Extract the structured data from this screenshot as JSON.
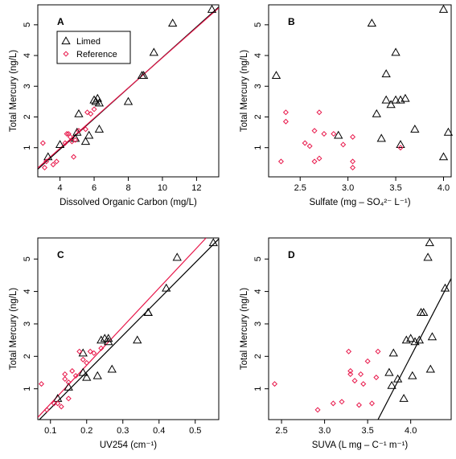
{
  "colors": {
    "limed": "#000000",
    "reference": "#e8174a",
    "frame": "#000000"
  },
  "chart_data": [
    {
      "type": "scatter",
      "panel": "A",
      "xlabel": "Dissolved Organic Carbon (mg/L)",
      "ylabel": "Total Mercury (ng/L)",
      "xlim": [
        2.7,
        13.3
      ],
      "ylim": [
        0.05,
        5.65
      ],
      "xticks": [
        4,
        6,
        8,
        10,
        12
      ],
      "yticks": [
        1,
        2,
        3,
        4,
        5
      ],
      "legend": {
        "position": "top-left",
        "entries": [
          "Limed",
          "Reference"
        ]
      },
      "series": [
        {
          "name": "Limed",
          "marker": "triangle",
          "color": "limed",
          "points": [
            [
              3.3,
              0.7
            ],
            [
              4.0,
              1.1
            ],
            [
              4.9,
              1.3
            ],
            [
              5.0,
              1.5
            ],
            [
              5.1,
              2.1
            ],
            [
              5.5,
              1.2
            ],
            [
              5.7,
              1.4
            ],
            [
              6.0,
              2.55
            ],
            [
              6.1,
              2.5
            ],
            [
              6.2,
              2.6
            ],
            [
              6.3,
              2.45
            ],
            [
              6.3,
              1.6
            ],
            [
              8.0,
              2.5
            ],
            [
              8.8,
              3.35
            ],
            [
              8.9,
              3.35
            ],
            [
              9.5,
              4.1
            ],
            [
              10.6,
              5.05
            ],
            [
              12.9,
              5.5
            ]
          ]
        },
        {
          "name": "Reference",
          "marker": "diamond",
          "color": "reference",
          "points": [
            [
              3.0,
              1.15
            ],
            [
              3.2,
              0.55
            ],
            [
              3.1,
              0.35
            ],
            [
              3.6,
              0.45
            ],
            [
              3.8,
              0.55
            ],
            [
              4.3,
              1.15
            ],
            [
              4.4,
              1.45
            ],
            [
              4.5,
              1.45
            ],
            [
              4.6,
              1.35
            ],
            [
              4.7,
              1.2
            ],
            [
              4.8,
              0.7
            ],
            [
              4.9,
              1.25
            ],
            [
              5.1,
              1.55
            ],
            [
              5.5,
              1.6
            ],
            [
              5.6,
              2.15
            ],
            [
              5.8,
              2.1
            ],
            [
              6.0,
              2.25
            ]
          ]
        }
      ],
      "fit_lines": [
        {
          "series": "Limed",
          "color": "limed",
          "p1": [
            2.7,
            0.3
          ],
          "p2": [
            13.3,
            5.58
          ]
        },
        {
          "series": "Reference",
          "color": "reference",
          "p1": [
            2.7,
            0.34
          ],
          "p2": [
            13.3,
            5.55
          ]
        }
      ]
    },
    {
      "type": "scatter",
      "panel": "B",
      "xlabel": "Sulfate (mg – SO₄²⁻ L⁻¹)",
      "ylabel": "Total Mercury (ng/L)",
      "xlim": [
        2.17,
        4.08
      ],
      "ylim": [
        0.05,
        5.65
      ],
      "xticks": [
        2.5,
        3.0,
        3.5,
        4.0
      ],
      "yticks": [
        1,
        2,
        3,
        4,
        5
      ],
      "series": [
        {
          "name": "Limed",
          "marker": "triangle",
          "color": "limed",
          "points": [
            [
              2.25,
              3.35
            ],
            [
              2.9,
              1.4
            ],
            [
              3.25,
              5.05
            ],
            [
              3.3,
              2.1
            ],
            [
              3.35,
              1.3
            ],
            [
              3.4,
              3.4
            ],
            [
              3.4,
              2.55
            ],
            [
              3.45,
              2.4
            ],
            [
              3.5,
              2.55
            ],
            [
              3.5,
              4.1
            ],
            [
              3.55,
              2.55
            ],
            [
              3.55,
              1.1
            ],
            [
              3.6,
              2.6
            ],
            [
              3.7,
              1.6
            ],
            [
              4.0,
              5.5
            ],
            [
              4.0,
              0.7
            ],
            [
              4.05,
              1.5
            ]
          ]
        },
        {
          "name": "Reference",
          "marker": "diamond",
          "color": "reference",
          "points": [
            [
              2.3,
              0.55
            ],
            [
              2.35,
              2.15
            ],
            [
              2.35,
              1.85
            ],
            [
              2.55,
              1.15
            ],
            [
              2.6,
              1.05
            ],
            [
              2.65,
              0.55
            ],
            [
              2.65,
              1.55
            ],
            [
              2.7,
              2.15
            ],
            [
              2.7,
              0.65
            ],
            [
              2.75,
              1.45
            ],
            [
              2.85,
              1.45
            ],
            [
              2.95,
              1.1
            ],
            [
              3.05,
              1.35
            ],
            [
              3.05,
              0.55
            ],
            [
              3.05,
              0.35
            ],
            [
              3.55,
              1.0
            ]
          ]
        }
      ]
    },
    {
      "type": "scatter",
      "panel": "C",
      "xlabel": "UV254 (cm⁻¹)",
      "ylabel": "Total Mercury (ng/L)",
      "xlim": [
        0.065,
        0.565
      ],
      "ylim": [
        0.05,
        5.65
      ],
      "xticks": [
        0.1,
        0.2,
        0.3,
        0.4,
        0.5
      ],
      "yticks": [
        1,
        2,
        3,
        4,
        5
      ],
      "series": [
        {
          "name": "Limed",
          "marker": "triangle",
          "color": "limed",
          "points": [
            [
              0.12,
              0.7
            ],
            [
              0.15,
              1.05
            ],
            [
              0.19,
              1.5
            ],
            [
              0.19,
              2.1
            ],
            [
              0.2,
              1.35
            ],
            [
              0.23,
              1.4
            ],
            [
              0.24,
              2.5
            ],
            [
              0.25,
              2.55
            ],
            [
              0.26,
              2.55
            ],
            [
              0.26,
              2.45
            ],
            [
              0.27,
              1.6
            ],
            [
              0.34,
              2.5
            ],
            [
              0.37,
              3.35
            ],
            [
              0.37,
              3.35
            ],
            [
              0.42,
              4.1
            ],
            [
              0.45,
              5.05
            ],
            [
              0.55,
              5.5
            ]
          ]
        },
        {
          "name": "Reference",
          "marker": "diamond",
          "color": "reference",
          "points": [
            [
              0.075,
              1.15
            ],
            [
              0.09,
              0.35
            ],
            [
              0.11,
              0.55
            ],
            [
              0.12,
              0.55
            ],
            [
              0.13,
              0.45
            ],
            [
              0.14,
              1.45
            ],
            [
              0.14,
              1.3
            ],
            [
              0.15,
              1.2
            ],
            [
              0.15,
              0.7
            ],
            [
              0.16,
              1.55
            ],
            [
              0.17,
              1.4
            ],
            [
              0.18,
              2.15
            ],
            [
              0.19,
              1.9
            ],
            [
              0.2,
              1.8
            ],
            [
              0.21,
              2.15
            ],
            [
              0.22,
              2.1
            ],
            [
              0.24,
              2.25
            ]
          ]
        }
      ],
      "fit_lines": [
        {
          "series": "Limed",
          "color": "limed",
          "p1": [
            0.065,
            0.0
          ],
          "p2": [
            0.565,
            5.62
          ]
        },
        {
          "series": "Reference",
          "color": "reference",
          "p1": [
            0.065,
            0.12
          ],
          "p2": [
            0.53,
            5.65
          ]
        }
      ]
    },
    {
      "type": "scatter",
      "panel": "D",
      "xlabel": "SUVA (L mg – C⁻¹ m⁻¹)",
      "ylabel": "Total Mercury (ng/L)",
      "xlim": [
        2.35,
        4.47
      ],
      "ylim": [
        0.05,
        5.65
      ],
      "xticks": [
        2.5,
        3.0,
        3.5,
        4.0
      ],
      "yticks": [
        1,
        2,
        3,
        4,
        5
      ],
      "series": [
        {
          "name": "Limed",
          "marker": "triangle",
          "color": "limed",
          "points": [
            [
              3.75,
              1.5
            ],
            [
              3.78,
              1.1
            ],
            [
              3.8,
              2.1
            ],
            [
              3.85,
              1.3
            ],
            [
              3.92,
              0.7
            ],
            [
              3.95,
              2.5
            ],
            [
              4.0,
              2.55
            ],
            [
              4.02,
              1.4
            ],
            [
              4.05,
              2.45
            ],
            [
              4.1,
              2.5
            ],
            [
              4.12,
              3.35
            ],
            [
              4.15,
              3.35
            ],
            [
              4.2,
              5.05
            ],
            [
              4.22,
              5.5
            ],
            [
              4.23,
              1.6
            ],
            [
              4.25,
              2.6
            ],
            [
              4.4,
              4.1
            ]
          ]
        },
        {
          "name": "Reference",
          "marker": "diamond",
          "color": "reference",
          "points": [
            [
              2.42,
              1.15
            ],
            [
              2.92,
              0.35
            ],
            [
              3.1,
              0.55
            ],
            [
              3.2,
              0.6
            ],
            [
              3.28,
              2.15
            ],
            [
              3.3,
              1.55
            ],
            [
              3.3,
              1.45
            ],
            [
              3.35,
              1.25
            ],
            [
              3.42,
              1.45
            ],
            [
              3.45,
              1.15
            ],
            [
              3.5,
              1.85
            ],
            [
              3.55,
              0.55
            ],
            [
              3.6,
              1.35
            ],
            [
              3.62,
              2.15
            ],
            [
              3.4,
              0.5
            ]
          ]
        }
      ],
      "fit_lines": [
        {
          "series": "Limed",
          "color": "limed",
          "p1": [
            3.62,
            0.05
          ],
          "p2": [
            4.47,
            4.4
          ]
        }
      ]
    }
  ]
}
